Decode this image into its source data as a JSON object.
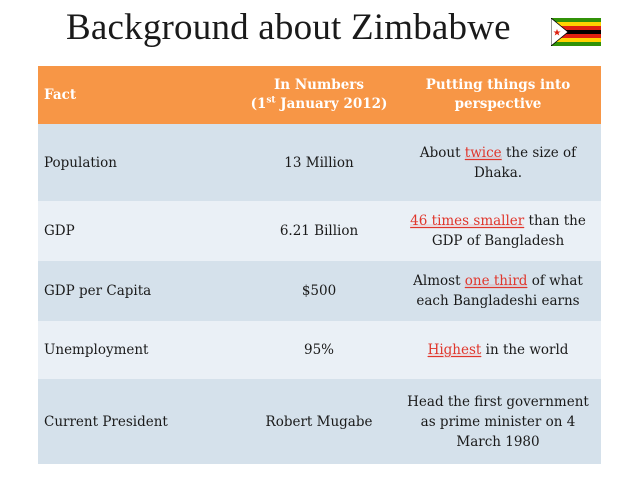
{
  "title": "Background about Zimbabwe",
  "flag_icon": "zimbabwe-flag-icon",
  "colors": {
    "header_bg": "#f79646",
    "row_dark": "#d5e1eb",
    "row_light": "#eaf0f6",
    "highlight": "#e0362c"
  },
  "table": {
    "headers": {
      "fact": "Fact",
      "numbers_line1": "In Numbers",
      "numbers_open": "(1",
      "numbers_sup": "st",
      "numbers_rest": " January 2012)",
      "perspective": "Putting things into perspective"
    },
    "rows": [
      {
        "fact": "Population",
        "number": "13 Million",
        "persp_pre": "About ",
        "persp_hl": "twice",
        "persp_post": " the size of Dhaka."
      },
      {
        "fact": "GDP",
        "number": "6.21 Billion",
        "persp_pre": "",
        "persp_hl": "46 times smaller",
        "persp_post": " than the GDP of Bangladesh"
      },
      {
        "fact": "GDP per Capita",
        "number": "$500",
        "persp_pre": "Almost ",
        "persp_hl": "one third",
        "persp_post": " of what each Bangladeshi earns"
      },
      {
        "fact": "Unemployment",
        "number": "95%",
        "persp_pre": "",
        "persp_hl": "Highest",
        "persp_post": " in the world"
      },
      {
        "fact": "Current President",
        "number": "Robert Mugabe",
        "persp_pre": "Head the first government as prime minister on 4 March 1980",
        "persp_hl": "",
        "persp_post": ""
      }
    ]
  }
}
